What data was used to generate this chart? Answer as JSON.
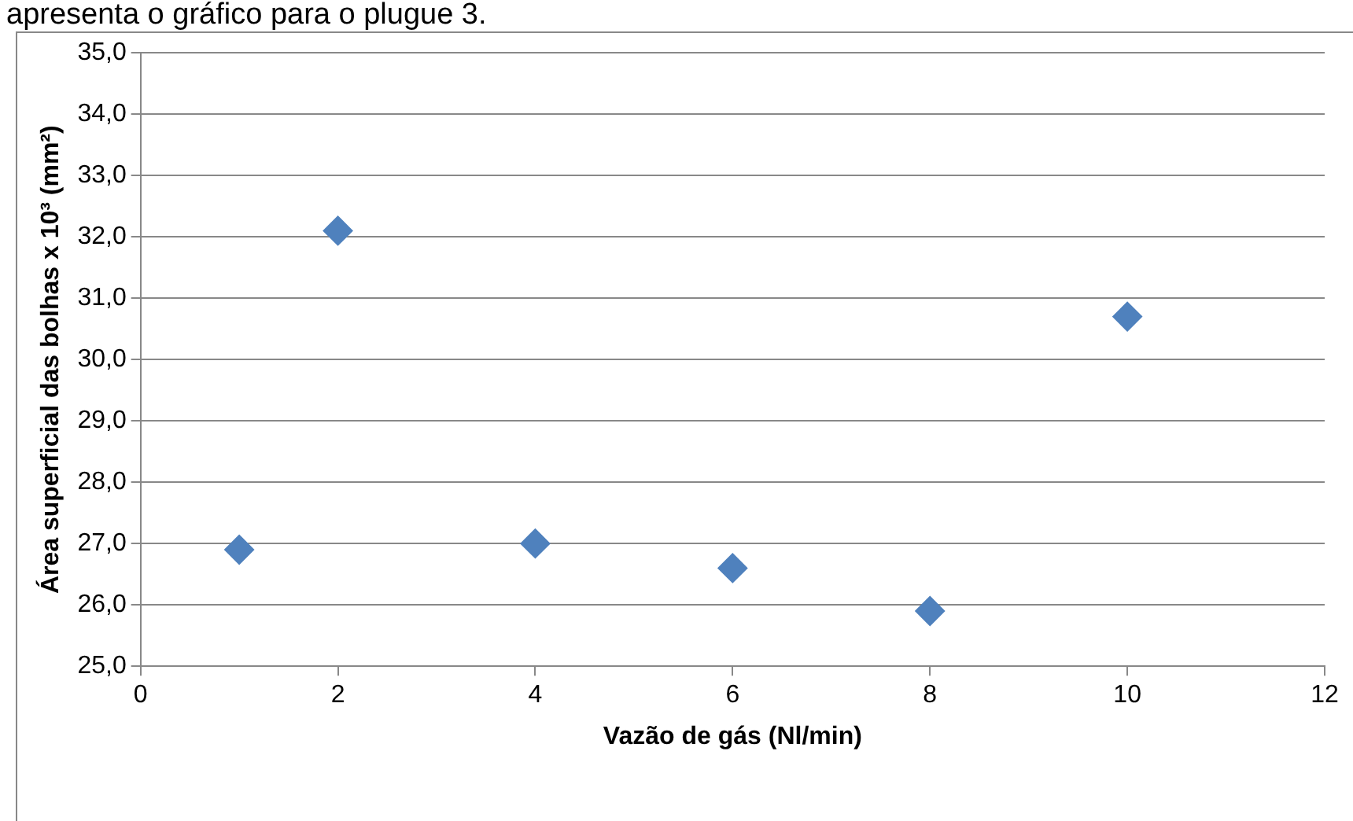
{
  "chart_data": {
    "type": "scatter",
    "xlabel": "Vazão de gás (Nl/min)",
    "ylabel": "Área superficial das bolhas x 10³ (mm²)",
    "annotations": [
      "apresenta o gráfico para o plugue 3."
    ],
    "series": [
      {
        "color": "#4f81bd",
        "x": [
          1,
          2,
          4,
          6,
          8,
          10
        ],
        "values": [
          26.9,
          32.1,
          27.0,
          26.6,
          25.9,
          30.7
        ]
      }
    ],
    "xlim": [
      0,
      12
    ],
    "xticks": [
      0,
      2,
      4,
      6,
      8,
      10,
      12
    ],
    "ylim": [
      25,
      35
    ],
    "yticks": [
      {
        "value": 25,
        "label": "25,0"
      },
      {
        "value": 26,
        "label": "26,0"
      },
      {
        "value": 27,
        "label": "27,0"
      },
      {
        "value": 28,
        "label": "28,0"
      },
      {
        "value": 29,
        "label": "29,0"
      },
      {
        "value": 30,
        "label": "30,0"
      },
      {
        "value": 31,
        "label": "31,0"
      },
      {
        "value": 32,
        "label": "32,0"
      },
      {
        "value": 33,
        "label": "33,0"
      },
      {
        "value": 34,
        "label": "34,0"
      },
      {
        "value": 35,
        "label": "35,0"
      }
    ],
    "grid": "y",
    "legend": false,
    "marker": "diamond"
  }
}
